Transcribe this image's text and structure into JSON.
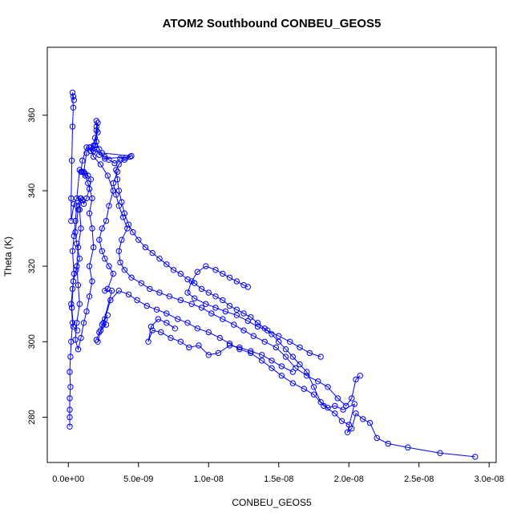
{
  "chart_data": {
    "type": "scatter",
    "title": "ATOM2 Southbound CONBEU_GEOS5",
    "xlabel": "CONBEU_GEOS5",
    "ylabel": "Theta (K)",
    "xlim": [
      -1.5e-09,
      3.05e-08
    ],
    "ylim": [
      268.0,
      378.0
    ],
    "x_ticks": [
      0,
      5e-09,
      1e-08,
      1.5e-08,
      2e-08,
      2.5e-08,
      3e-08
    ],
    "x_tick_labels": [
      "0.0e+00",
      "5.0e-09",
      "1.0e-08",
      "1.5e-08",
      "2.0e-08",
      "2.5e-08",
      "3.0e-08"
    ],
    "y_ticks": [
      280,
      300,
      320,
      340,
      360
    ],
    "y_tick_labels": [
      "280",
      "300",
      "320",
      "340",
      "360"
    ],
    "series_style": "points connected by lines",
    "color": "#0000ff",
    "grid": false,
    "series": [
      {
        "values": [
          [
            2.9e-08,
            269.5
          ],
          [
            2.65e-08,
            270.5
          ],
          [
            2.42e-08,
            272.0
          ],
          [
            2.28e-08,
            273.0
          ],
          [
            2.2e-08,
            274.5
          ],
          [
            2.15e-08,
            278.5
          ],
          [
            2.1e-08,
            279.5
          ],
          [
            2.05e-08,
            281.0
          ],
          [
            2.02e-08,
            277.0
          ],
          [
            1.99e-08,
            276.0
          ],
          [
            2.04e-08,
            283.5
          ],
          [
            1.96e-08,
            282.0
          ],
          [
            1.9e-08,
            283.0
          ],
          [
            1.85e-08,
            282.5
          ],
          [
            1.8e-08,
            284.0
          ],
          [
            1.75e-08,
            288.0
          ],
          [
            1.7e-08,
            292.0
          ],
          [
            1.65e-08,
            294.0
          ],
          [
            1.6e-08,
            296.0
          ],
          [
            1.55e-08,
            298.0
          ],
          [
            1.5e-08,
            300.0
          ],
          [
            1.45e-08,
            302.0
          ],
          [
            1.4e-08,
            303.5
          ],
          [
            1.35e-08,
            305.0
          ],
          [
            1.3e-08,
            306.5
          ],
          [
            1.25e-08,
            307.5
          ],
          [
            1.2e-08,
            308.5
          ],
          [
            1.15e-08,
            309.5
          ],
          [
            1.1e-08,
            311.0
          ],
          [
            1.05e-08,
            312.0
          ],
          [
            1e-08,
            313.0
          ],
          [
            9.5e-09,
            314.0
          ],
          [
            9e-09,
            315.5
          ],
          [
            8.5e-09,
            316.5
          ],
          [
            8e-09,
            318.0
          ],
          [
            7.5e-09,
            319.0
          ],
          [
            7e-09,
            320.5
          ],
          [
            6.5e-09,
            322.0
          ],
          [
            6e-09,
            323.5
          ],
          [
            5.5e-09,
            325.0
          ],
          [
            5e-09,
            327.0
          ],
          [
            4.6e-09,
            329.0
          ],
          [
            4.3e-09,
            331.0
          ],
          [
            4e-09,
            334.0
          ],
          [
            3.8e-09,
            337.0
          ],
          [
            3.6e-09,
            340.0
          ],
          [
            3.5e-09,
            343.0
          ],
          [
            3.4e-09,
            345.5
          ],
          [
            3.6e-09,
            347.0
          ],
          [
            4e-09,
            348.2
          ],
          [
            4.4e-09,
            349.0
          ],
          [
            2.6e-09,
            348.5
          ],
          [
            2.2e-09,
            351.0
          ],
          [
            2e-09,
            353.0
          ],
          [
            2e-09,
            356.0
          ],
          [
            2.1e-09,
            358.0
          ],
          [
            1.9e-09,
            352.0
          ],
          [
            1.6e-09,
            350.5
          ],
          [
            1.3e-09,
            351.5
          ],
          [
            1e-09,
            348.0
          ],
          [
            9e-10,
            345.0
          ],
          [
            1.2e-09,
            344.0
          ],
          [
            1.4e-09,
            342.0
          ],
          [
            1.7e-09,
            338.0
          ],
          [
            1.5e-09,
            334.0
          ],
          [
            1.7e-09,
            330.0
          ],
          [
            1.8e-09,
            325.0
          ],
          [
            1.5e-09,
            320.0
          ],
          [
            1.7e-09,
            316.0
          ],
          [
            1.5e-09,
            312.0
          ],
          [
            1.3e-09,
            308.0
          ],
          [
            1.1e-09,
            305.0
          ],
          [
            9e-10,
            301.0
          ],
          [
            7e-10,
            298.0
          ],
          [
            5e-10,
            300.5
          ],
          [
            6e-10,
            305.0
          ],
          [
            8e-10,
            310.0
          ],
          [
            7e-10,
            315.0
          ],
          [
            6e-10,
            320.0
          ],
          [
            7e-10,
            325.0
          ],
          [
            9e-10,
            330.0
          ],
          [
            8e-10,
            335.0
          ],
          [
            9e-10,
            338.0
          ],
          [
            6e-10,
            336.0
          ],
          [
            5e-10,
            332.0
          ],
          [
            4e-10,
            328.0
          ],
          [
            3e-10,
            324.0
          ],
          [
            4e-10,
            318.0
          ],
          [
            3e-10,
            314.0
          ],
          [
            2e-10,
            310.0
          ],
          [
            3e-10,
            305.0
          ],
          [
            2e-10,
            300.0
          ],
          [
            1.5e-10,
            296.0
          ],
          [
            1e-10,
            292.0
          ],
          [
            1.5e-10,
            288.0
          ],
          [
            1e-10,
            285.0
          ],
          [
            1e-10,
            282.0
          ],
          [
            1e-10,
            280.0
          ],
          [
            1e-10,
            277.5
          ]
        ]
      },
      {
        "values": [
          [
            2.08e-08,
            291.0
          ],
          [
            2.05e-08,
            290.0
          ],
          [
            2.02e-08,
            285.0
          ],
          [
            1.98e-08,
            283.0
          ],
          [
            1.92e-08,
            285.0
          ],
          [
            1.85e-08,
            288.0
          ],
          [
            1.78e-08,
            289.5
          ],
          [
            1.7e-08,
            291.0
          ],
          [
            1.62e-08,
            293.0
          ],
          [
            1.55e-08,
            296.0
          ],
          [
            1.48e-08,
            298.5
          ],
          [
            1.4e-08,
            300.0
          ],
          [
            1.32e-08,
            301.5
          ],
          [
            1.25e-08,
            303.0
          ],
          [
            1.18e-08,
            304.5
          ],
          [
            1.1e-08,
            306.0
          ],
          [
            1.02e-08,
            307.5
          ],
          [
            9.5e-09,
            309.0
          ],
          [
            8.8e-09,
            310.0
          ],
          [
            8e-09,
            311.0
          ],
          [
            7.2e-09,
            312.0
          ],
          [
            6.5e-09,
            313.0
          ],
          [
            5.8e-09,
            314.0
          ],
          [
            5.2e-09,
            315.5
          ],
          [
            4.5e-09,
            317.0
          ],
          [
            4e-09,
            319.0
          ],
          [
            3.7e-09,
            321.0
          ],
          [
            3.6e-09,
            324.0
          ],
          [
            3.8e-09,
            327.0
          ],
          [
            4.2e-09,
            330.0
          ],
          [
            3.9e-09,
            333.0
          ],
          [
            3.6e-09,
            336.0
          ],
          [
            3.4e-09,
            339.0
          ],
          [
            3.2e-09,
            342.0
          ],
          [
            3.5e-09,
            345.0
          ]
        ]
      },
      {
        "values": [
          [
            2e-08,
            278.0
          ],
          [
            1.95e-08,
            279.0
          ],
          [
            1.9e-08,
            281.0
          ],
          [
            1.82e-08,
            283.0
          ],
          [
            1.75e-08,
            286.0
          ],
          [
            1.68e-08,
            287.5
          ],
          [
            1.6e-08,
            289.0
          ],
          [
            1.52e-08,
            291.0
          ],
          [
            1.45e-08,
            293.0
          ],
          [
            1.38e-08,
            295.0
          ],
          [
            1.3e-08,
            297.0
          ],
          [
            1.22e-08,
            298.0
          ],
          [
            1.15e-08,
            299.5
          ],
          [
            1.08e-08,
            301.0
          ],
          [
            1e-08,
            302.5
          ],
          [
            9.2e-09,
            303.5
          ],
          [
            8.5e-09,
            305.0
          ],
          [
            7.8e-09,
            306.0
          ],
          [
            7e-09,
            307.5
          ],
          [
            6.3e-09,
            308.5
          ],
          [
            5.6e-09,
            309.5
          ],
          [
            4.9e-09,
            311.0
          ],
          [
            4.3e-09,
            312.5
          ],
          [
            3.6e-09,
            313.5
          ],
          [
            3e-09,
            311.0
          ],
          [
            2.6e-09,
            306.0
          ],
          [
            2.3e-09,
            303.0
          ],
          [
            2.1e-09,
            300.0
          ],
          [
            2.4e-09,
            304.5
          ],
          [
            2.8e-09,
            307.0
          ]
        ]
      },
      {
        "values": [
          [
            1.8e-08,
            296.0
          ],
          [
            1.72e-08,
            297.0
          ],
          [
            1.65e-08,
            298.5
          ],
          [
            1.58e-08,
            300.0
          ],
          [
            1.5e-08,
            301.5
          ],
          [
            1.42e-08,
            303.0
          ],
          [
            1.35e-08,
            304.0
          ],
          [
            1.28e-08,
            305.5
          ],
          [
            1.2e-08,
            307.0
          ],
          [
            1.12e-08,
            308.0
          ],
          [
            1.05e-08,
            309.0
          ],
          [
            9.8e-09,
            310.0
          ],
          [
            9e-09,
            311.5
          ],
          [
            8.5e-09,
            313.0
          ],
          [
            8.8e-09,
            316.0
          ],
          [
            9.2e-09,
            318.5
          ],
          [
            9.8e-09,
            320.0
          ],
          [
            1.05e-08,
            319.0
          ],
          [
            1.1e-08,
            318.0
          ],
          [
            1.15e-08,
            317.0
          ],
          [
            1.2e-08,
            316.0
          ],
          [
            1.25e-08,
            315.0
          ],
          [
            1.28e-08,
            314.5
          ]
        ]
      },
      {
        "values": [
          [
            1.6e-08,
            292.0
          ],
          [
            1.52e-08,
            293.5
          ],
          [
            1.45e-08,
            295.0
          ],
          [
            1.38e-08,
            296.5
          ],
          [
            1.3e-08,
            297.5
          ],
          [
            1.22e-08,
            298.5
          ],
          [
            1.15e-08,
            299.0
          ],
          [
            1.07e-08,
            297.0
          ],
          [
            1e-08,
            296.5
          ],
          [
            9.3e-09,
            299.0
          ],
          [
            8.6e-09,
            298.5
          ],
          [
            8e-09,
            300.0
          ],
          [
            7.3e-09,
            301.0
          ],
          [
            6.6e-09,
            302.5
          ],
          [
            6e-09,
            303.0
          ],
          [
            5.7e-09,
            300.0
          ],
          [
            5.9e-09,
            304.0
          ],
          [
            6.4e-09,
            306.0
          ],
          [
            7e-09,
            305.0
          ],
          [
            7.6e-09,
            303.5
          ]
        ]
      },
      {
        "values": [
          [
            2.6e-09,
            349.0
          ],
          [
            2.9e-09,
            348.2
          ],
          [
            3.3e-09,
            347.3
          ],
          [
            3.7e-09,
            348.5
          ],
          [
            4.1e-09,
            348.7
          ],
          [
            4.5e-09,
            349.2
          ],
          [
            2.4e-09,
            350.0
          ],
          [
            2.2e-09,
            349.5
          ],
          [
            2e-09,
            351.0
          ],
          [
            1.8e-09,
            350.5
          ],
          [
            1.5e-09,
            351.5
          ],
          [
            1.3e-09,
            350.0
          ],
          [
            1.1e-09,
            345.0
          ],
          [
            8e-10,
            345.5
          ],
          [
            6e-10,
            338.0
          ],
          [
            4e-10,
            336.5
          ],
          [
            2e-10,
            332.0
          ],
          [
            2e-10,
            338.0
          ],
          [
            2.5e-10,
            348.0
          ],
          [
            3e-10,
            357.0
          ],
          [
            3.5e-10,
            362.0
          ],
          [
            3e-10,
            366.0
          ],
          [
            3.5e-10,
            365.0
          ],
          [
            4e-10,
            364.0
          ]
        ]
      },
      {
        "values": [
          [
            2e-09,
            358.5
          ],
          [
            2e-09,
            357.0
          ],
          [
            2.1e-09,
            355.5
          ],
          [
            1.9e-09,
            354.0
          ],
          [
            1.8e-09,
            352.0
          ],
          [
            1.6e-09,
            351.5
          ],
          [
            1.8e-09,
            349.0
          ],
          [
            2.3e-09,
            347.0
          ],
          [
            2.8e-09,
            344.0
          ],
          [
            3.2e-09,
            340.0
          ],
          [
            2.9e-09,
            336.0
          ],
          [
            2.7e-09,
            332.0
          ],
          [
            2.4e-09,
            330.0
          ],
          [
            2.2e-09,
            327.0
          ],
          [
            2.4e-09,
            324.0
          ],
          [
            2.6e-09,
            322.0
          ],
          [
            2.9e-09,
            320.0
          ],
          [
            3.2e-09,
            318.0
          ],
          [
            2.8e-09,
            314.0
          ],
          [
            2.6e-09,
            313.5
          ],
          [
            3.1e-09,
            313.5
          ],
          [
            2.5e-09,
            305.0
          ],
          [
            2.7e-09,
            304.5
          ],
          [
            2.2e-09,
            302.5
          ],
          [
            2e-09,
            300.5
          ]
        ]
      },
      {
        "values": [
          [
            1e-09,
            345.0
          ],
          [
            1.2e-09,
            344.5
          ],
          [
            1.4e-09,
            344.0
          ],
          [
            1.6e-09,
            343.0
          ],
          [
            1.5e-09,
            340.5
          ],
          [
            1.3e-09,
            338.0
          ],
          [
            1.1e-09,
            336.5
          ],
          [
            1e-09,
            337.5
          ],
          [
            8.5e-10,
            338.0
          ],
          [
            7e-10,
            335.0
          ],
          [
            5e-10,
            329.0
          ],
          [
            6e-10,
            326.0
          ],
          [
            8e-10,
            322.0
          ],
          [
            5.5e-10,
            319.0
          ],
          [
            3.5e-10,
            316.0
          ],
          [
            2.5e-10,
            309.0
          ],
          [
            3.5e-10,
            304.0
          ],
          [
            6.5e-10,
            303.0
          ]
        ]
      }
    ]
  }
}
